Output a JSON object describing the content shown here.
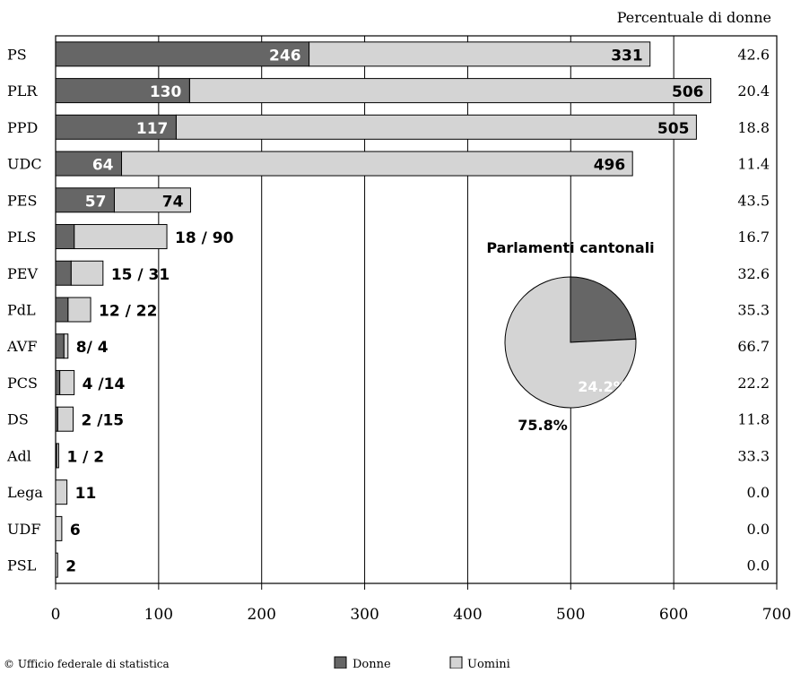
{
  "chart_data": [
    {
      "type": "bar",
      "orientation": "horizontal",
      "stacked": true,
      "categories": [
        "PS",
        "PLR",
        "PPD",
        "UDC",
        "PES",
        "PLS",
        "PEV",
        "PdL",
        "AVF",
        "PCS",
        "DS",
        "Adl",
        "Lega",
        "UDF",
        "PSL"
      ],
      "series": [
        {
          "name": "Donne",
          "values": [
            246,
            130,
            117,
            64,
            57,
            18,
            15,
            12,
            8,
            4,
            2,
            1,
            0,
            0,
            0
          ]
        },
        {
          "name": "Uomini",
          "values": [
            331,
            506,
            505,
            496,
            74,
            90,
            31,
            22,
            4,
            14,
            15,
            2,
            11,
            6,
            2
          ]
        }
      ],
      "bar_labels": [
        "246|331",
        "130|506",
        "117|505",
        "64|496",
        "57|74",
        "18 / 90",
        "15 / 31",
        "12 / 22",
        "8/ 4",
        "4 /14",
        "2 /15",
        "1 / 2",
        "11",
        "6",
        "2"
      ],
      "right_column_title": "Percentuale di donne",
      "right_column_values": [
        "42.6",
        "20.4",
        "18.8",
        "11.4",
        "43.5",
        "16.7",
        "32.6",
        "35.3",
        "66.7",
        "22.2",
        "11.8",
        "33.3",
        "0.0",
        "0.0",
        "0.0"
      ],
      "xlim": [
        0,
        700
      ],
      "xticks": [
        "0",
        "100",
        "200",
        "300",
        "400",
        "500",
        "600",
        "700"
      ],
      "grid": "vertical",
      "colors": {
        "Donne": "#666666",
        "Uomini": "#d4d4d4"
      }
    },
    {
      "type": "pie",
      "title": "Parlamenti cantonali",
      "slices": [
        {
          "name": "Donne",
          "value": 24.2,
          "label": "24.2%"
        },
        {
          "name": "Uomini",
          "value": 75.8,
          "label": "75.8%"
        }
      ],
      "colors": {
        "Donne": "#666666",
        "Uomini": "#d4d4d4"
      }
    }
  ],
  "legend": {
    "items": [
      {
        "label": "Donne",
        "color": "#666666"
      },
      {
        "label": "Uomini",
        "color": "#d4d4d4"
      }
    ]
  },
  "footer": {
    "source": "© Ufficio federale di statistica"
  }
}
